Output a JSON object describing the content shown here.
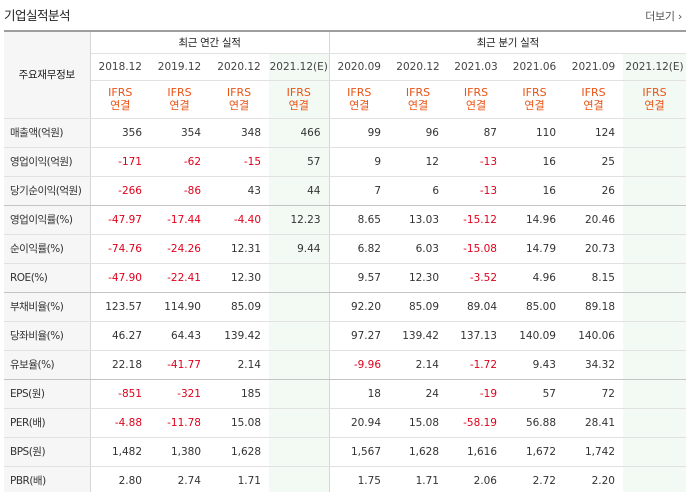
{
  "header": {
    "title": "기업실적분석",
    "more_label": "더보기"
  },
  "table": {
    "corner_label": "주요재무정보",
    "annual_group_label": "최근 연간 실적",
    "quarter_group_label": "최근 분기 실적",
    "periods": [
      "2018.12",
      "2019.12",
      "2020.12",
      "2021.12(E)",
      "2020.09",
      "2020.12",
      "2021.03",
      "2021.06",
      "2021.09",
      "2021.12(E)"
    ],
    "standard_line1": "IFRS",
    "standard_line2": "연결",
    "rows": [
      {
        "label": "매출액(억원)",
        "values": [
          "356",
          "354",
          "348",
          "466",
          "99",
          "96",
          "87",
          "110",
          "124",
          ""
        ]
      },
      {
        "label": "영업이익(억원)",
        "values": [
          "-171",
          "-62",
          "-15",
          "57",
          "9",
          "12",
          "-13",
          "16",
          "25",
          ""
        ]
      },
      {
        "label": "당기순이익(억원)",
        "values": [
          "-266",
          "-86",
          "43",
          "44",
          "7",
          "6",
          "-13",
          "16",
          "26",
          ""
        ]
      },
      {
        "label": "영업이익률(%)",
        "values": [
          "-47.97",
          "-17.44",
          "-4.40",
          "12.23",
          "8.65",
          "13.03",
          "-15.12",
          "14.96",
          "20.46",
          ""
        ]
      },
      {
        "label": "순이익률(%)",
        "values": [
          "-74.76",
          "-24.26",
          "12.31",
          "9.44",
          "6.82",
          "6.03",
          "-15.08",
          "14.79",
          "20.73",
          ""
        ]
      },
      {
        "label": "ROE(%)",
        "values": [
          "-47.90",
          "-22.41",
          "12.30",
          "",
          "9.57",
          "12.30",
          "-3.52",
          "4.96",
          "8.15",
          ""
        ]
      },
      {
        "label": "부채비율(%)",
        "values": [
          "123.57",
          "114.90",
          "85.09",
          "",
          "92.20",
          "85.09",
          "89.04",
          "85.00",
          "89.18",
          ""
        ]
      },
      {
        "label": "당좌비율(%)",
        "values": [
          "46.27",
          "64.43",
          "139.42",
          "",
          "97.27",
          "139.42",
          "137.13",
          "140.09",
          "140.06",
          ""
        ]
      },
      {
        "label": "유보율(%)",
        "values": [
          "22.18",
          "-41.77",
          "2.14",
          "",
          "-9.96",
          "2.14",
          "-1.72",
          "9.43",
          "34.32",
          ""
        ]
      },
      {
        "label": "EPS(원)",
        "values": [
          "-851",
          "-321",
          "185",
          "",
          "18",
          "24",
          "-19",
          "57",
          "72",
          ""
        ]
      },
      {
        "label": "PER(배)",
        "values": [
          "-4.88",
          "-11.78",
          "15.08",
          "",
          "20.94",
          "15.08",
          "-58.19",
          "56.88",
          "28.41",
          ""
        ]
      },
      {
        "label": "BPS(원)",
        "values": [
          "1,482",
          "1,380",
          "1,628",
          "",
          "1,567",
          "1,628",
          "1,616",
          "1,672",
          "1,742",
          ""
        ]
      },
      {
        "label": "PBR(배)",
        "values": [
          "2.80",
          "2.74",
          "1.71",
          "",
          "1.75",
          "1.71",
          "2.06",
          "2.72",
          "2.20",
          ""
        ]
      }
    ]
  }
}
